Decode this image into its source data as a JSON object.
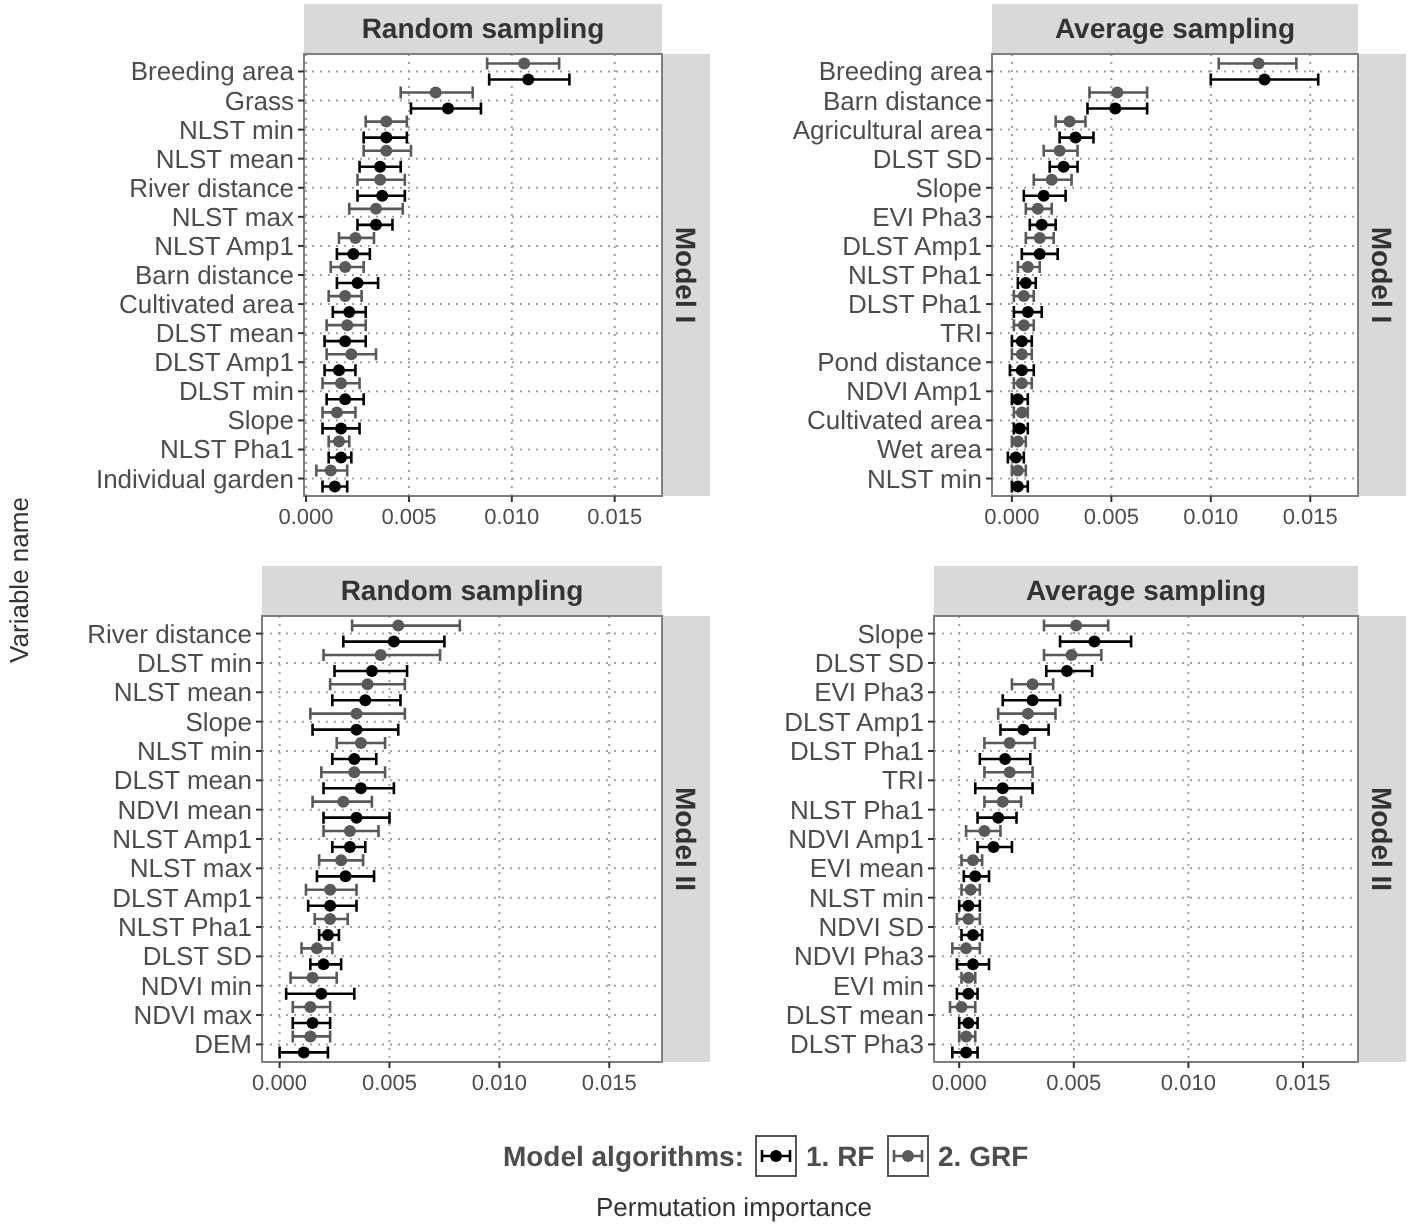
{
  "chart_data": [
    {
      "type": "scatter",
      "orientation": "horizontal",
      "title": "Random sampling",
      "annotations": [
        "Model I"
      ],
      "xlabel": "Permutation importance",
      "ylabel": "Variable name",
      "legend_title": "Model algorithms:",
      "legend": "bottom",
      "grid": true,
      "marker": "circle",
      "xlim": [
        -0.0001,
        0.0173
      ],
      "xticks": [
        {
          "value": 0,
          "label": "0.000"
        },
        {
          "value": 0.005,
          "label": "0.005"
        },
        {
          "value": 0.01,
          "label": "0.010"
        },
        {
          "value": 0.015,
          "label": "0.015"
        }
      ],
      "categories": [
        "Breeding area",
        "Grass",
        "NLST min",
        "NLST mean",
        "River distance",
        "NLST max",
        "NLST Amp1",
        "Barn distance",
        "Cultivated area",
        "DLST mean",
        "DLST Amp1",
        "DLST min",
        "Slope",
        "NLST Pha1",
        "Individual garden"
      ],
      "series": [
        {
          "name": "1. RF",
          "color": "#000000",
          "values": [
            0.0108,
            0.0069,
            0.0039,
            0.0036,
            0.0037,
            0.0034,
            0.0023,
            0.0025,
            0.0021,
            0.0019,
            0.0016,
            0.0019,
            0.0017,
            0.0017,
            0.0014
          ],
          "errors": [
            [
              0.0089,
              0.0128
            ],
            [
              0.0051,
              0.0085
            ],
            [
              0.0028,
              0.0049
            ],
            [
              0.0026,
              0.0046
            ],
            [
              0.0025,
              0.0048
            ],
            [
              0.0025,
              0.0042
            ],
            [
              0.0015,
              0.0031
            ],
            [
              0.0015,
              0.0035
            ],
            [
              0.0013,
              0.0029
            ],
            [
              0.0009,
              0.0029
            ],
            [
              0.0009,
              0.0024
            ],
            [
              0.001,
              0.0028
            ],
            [
              0.0008,
              0.0026
            ],
            [
              0.0011,
              0.0022
            ],
            [
              0.0008,
              0.002
            ]
          ]
        },
        {
          "name": "2. GRF",
          "color": "#595959",
          "values": [
            0.0106,
            0.0063,
            0.0039,
            0.0039,
            0.0036,
            0.0034,
            0.0024,
            0.0019,
            0.0019,
            0.002,
            0.0022,
            0.0017,
            0.0015,
            0.0016,
            0.0012
          ],
          "errors": [
            [
              0.0088,
              0.0123
            ],
            [
              0.0046,
              0.0081
            ],
            [
              0.0029,
              0.0049
            ],
            [
              0.0028,
              0.0051
            ],
            [
              0.0025,
              0.0048
            ],
            [
              0.0021,
              0.0047
            ],
            [
              0.0016,
              0.0033
            ],
            [
              0.0012,
              0.0028
            ],
            [
              0.0011,
              0.0027
            ],
            [
              0.001,
              0.0029
            ],
            [
              0.001,
              0.0034
            ],
            [
              0.0008,
              0.0026
            ],
            [
              0.0008,
              0.0024
            ],
            [
              0.0011,
              0.0021
            ],
            [
              0.0005,
              0.002
            ]
          ]
        }
      ]
    },
    {
      "type": "scatter",
      "orientation": "horizontal",
      "title": "Average sampling",
      "annotations": [
        "Model I"
      ],
      "grid": true,
      "marker": "circle",
      "xlim": [
        -0.001,
        0.0174
      ],
      "xticks": [
        {
          "value": 0,
          "label": "0.000"
        },
        {
          "value": 0.005,
          "label": "0.005"
        },
        {
          "value": 0.01,
          "label": "0.010"
        },
        {
          "value": 0.015,
          "label": "0.015"
        }
      ],
      "categories": [
        "Breeding area",
        "Barn distance",
        "Agricultural area",
        "DLST SD",
        "Slope",
        "EVI Pha3",
        "DLST Amp1",
        "NLST Pha1",
        "DLST Pha1",
        "TRI",
        "Pond distance",
        "NDVI Amp1",
        "Cultivated area",
        "Wet area",
        "NLST min"
      ],
      "series": [
        {
          "color": "#000000",
          "values": [
            0.0127,
            0.0052,
            0.0032,
            0.0026,
            0.0016,
            0.0015,
            0.0014,
            0.0007,
            0.0008,
            0.0005,
            0.0005,
            0.0003,
            0.0004,
            0.0002,
            0.0003
          ],
          "errors": [
            [
              0.01,
              0.0154
            ],
            [
              0.0038,
              0.0068
            ],
            [
              0.0024,
              0.0041
            ],
            [
              0.0019,
              0.0033
            ],
            [
              0.0006,
              0.0027
            ],
            [
              0.0009,
              0.0022
            ],
            [
              0.0005,
              0.0023
            ],
            [
              0.0003,
              0.0012
            ],
            [
              0.0001,
              0.0015
            ],
            [
              0,
              0.001
            ],
            [
              -0.0001,
              0.0011
            ],
            [
              0,
              0.0008
            ],
            [
              0.0001,
              0.0008
            ],
            [
              -0.0002,
              0.0006
            ],
            [
              0,
              0.0008
            ]
          ]
        },
        {
          "color": "#595959",
          "values": [
            0.0124,
            0.0053,
            0.0029,
            0.0024,
            0.002,
            0.0013,
            0.0014,
            0.0008,
            0.0006,
            0.0006,
            0.0005,
            0.0005,
            0.0005,
            0.0003,
            0.0003
          ],
          "errors": [
            [
              0.0104,
              0.0143
            ],
            [
              0.0039,
              0.0068
            ],
            [
              0.0022,
              0.0037
            ],
            [
              0.0016,
              0.0033
            ],
            [
              0.0011,
              0.003
            ],
            [
              0.0007,
              0.002
            ],
            [
              0.0007,
              0.0021
            ],
            [
              0.0003,
              0.0014
            ],
            [
              0.0001,
              0.0011
            ],
            [
              0.0001,
              0.0011
            ],
            [
              0,
              0.001
            ],
            [
              0.0001,
              0.001
            ],
            [
              0.0001,
              0.0008
            ],
            [
              0,
              0.0007
            ],
            [
              0,
              0.0007
            ]
          ]
        }
      ]
    },
    {
      "type": "scatter",
      "orientation": "horizontal",
      "title": "Random sampling",
      "annotations": [
        "Model II"
      ],
      "grid": true,
      "marker": "circle",
      "xlim": [
        -0.0008,
        0.0174
      ],
      "xticks": [
        {
          "value": 0,
          "label": "0.000"
        },
        {
          "value": 0.005,
          "label": "0.005"
        },
        {
          "value": 0.01,
          "label": "0.010"
        },
        {
          "value": 0.015,
          "label": "0.015"
        }
      ],
      "categories": [
        "River distance",
        "DLST min",
        "NLST mean",
        "Slope",
        "NLST min",
        "DLST mean",
        "NDVI mean",
        "NLST Amp1",
        "NLST max",
        "DLST Amp1",
        "NLST Pha1",
        "DLST SD",
        "NDVI min",
        "NDVI max",
        "DEM"
      ],
      "series": [
        {
          "color": "#000000",
          "values": [
            0.0052,
            0.0042,
            0.0039,
            0.0035,
            0.0034,
            0.0037,
            0.0035,
            0.0032,
            0.003,
            0.0023,
            0.0022,
            0.002,
            0.0019,
            0.0015,
            0.0011
          ],
          "errors": [
            [
              0.0029,
              0.0075
            ],
            [
              0.0025,
              0.0058
            ],
            [
              0.0024,
              0.0055
            ],
            [
              0.0015,
              0.0054
            ],
            [
              0.0024,
              0.0044
            ],
            [
              0.002,
              0.0052
            ],
            [
              0.002,
              0.005
            ],
            [
              0.0024,
              0.0039
            ],
            [
              0.0017,
              0.0043
            ],
            [
              0.0013,
              0.0035
            ],
            [
              0.0018,
              0.0027
            ],
            [
              0.0014,
              0.0028
            ],
            [
              0.0003,
              0.0034
            ],
            [
              0.0006,
              0.0023
            ],
            [
              0,
              0.0022
            ]
          ]
        },
        {
          "color": "#595959",
          "values": [
            0.0054,
            0.0046,
            0.004,
            0.0035,
            0.0037,
            0.0034,
            0.0029,
            0.0032,
            0.0028,
            0.0023,
            0.0023,
            0.0017,
            0.0015,
            0.0014,
            0.0014
          ],
          "errors": [
            [
              0.0033,
              0.0082
            ],
            [
              0.002,
              0.0073
            ],
            [
              0.0023,
              0.0057
            ],
            [
              0.0014,
              0.0057
            ],
            [
              0.0026,
              0.0048
            ],
            [
              0.0019,
              0.0048
            ],
            [
              0.0015,
              0.0042
            ],
            [
              0.002,
              0.0045
            ],
            [
              0.0018,
              0.0038
            ],
            [
              0.0012,
              0.0035
            ],
            [
              0.0016,
              0.0031
            ],
            [
              0.001,
              0.0024
            ],
            [
              0.0005,
              0.0026
            ],
            [
              0.0006,
              0.0023
            ],
            [
              0.0006,
              0.0023
            ]
          ]
        }
      ]
    },
    {
      "type": "scatter",
      "orientation": "horizontal",
      "title": "Average sampling",
      "annotations": [
        "Model II"
      ],
      "grid": true,
      "marker": "circle",
      "xlim": [
        -0.0011,
        0.0174
      ],
      "xticks": [
        {
          "value": 0,
          "label": "0.000"
        },
        {
          "value": 0.005,
          "label": "0.005"
        },
        {
          "value": 0.01,
          "label": "0.010"
        },
        {
          "value": 0.015,
          "label": "0.015"
        }
      ],
      "categories": [
        "Slope",
        "DLST SD",
        "EVI Pha3",
        "DLST Amp1",
        "DLST Pha1",
        "TRI",
        "NLST Pha1",
        "NDVI Amp1",
        "EVI mean",
        "NLST min",
        "NDVI SD",
        "NDVI Pha3",
        "EVI min",
        "DLST mean",
        "DLST Pha3"
      ],
      "series": [
        {
          "color": "#000000",
          "values": [
            0.0059,
            0.0047,
            0.0032,
            0.0028,
            0.002,
            0.0019,
            0.0017,
            0.0015,
            0.0007,
            0.0004,
            0.0006,
            0.0006,
            0.0004,
            0.0004,
            0.0003
          ],
          "errors": [
            [
              0.0044,
              0.0075
            ],
            [
              0.0038,
              0.0058
            ],
            [
              0.0019,
              0.0044
            ],
            [
              0.0018,
              0.0039
            ],
            [
              0.0009,
              0.0031
            ],
            [
              0.0007,
              0.0032
            ],
            [
              0.0008,
              0.0025
            ],
            [
              0.0008,
              0.0023
            ],
            [
              0.0002,
              0.0013
            ],
            [
              0,
              0.0009
            ],
            [
              0.0001,
              0.001
            ],
            [
              -0.0001,
              0.0013
            ],
            [
              -0.0001,
              0.0008
            ],
            [
              0,
              0.0008
            ],
            [
              -0.0003,
              0.0008
            ]
          ]
        },
        {
          "color": "#595959",
          "values": [
            0.0051,
            0.0049,
            0.0032,
            0.003,
            0.0022,
            0.0022,
            0.0019,
            0.0011,
            0.0006,
            0.0005,
            0.0004,
            0.0003,
            0.0004,
            0.0001,
            0.0003
          ],
          "errors": [
            [
              0.0037,
              0.0065
            ],
            [
              0.0037,
              0.0062
            ],
            [
              0.0023,
              0.0041
            ],
            [
              0.0017,
              0.0042
            ],
            [
              0.0011,
              0.0033
            ],
            [
              0.0011,
              0.0032
            ],
            [
              0.0011,
              0.0027
            ],
            [
              0.0003,
              0.0018
            ],
            [
              0.0001,
              0.001
            ],
            [
              0.0001,
              0.0009
            ],
            [
              -0.0001,
              0.0009
            ],
            [
              -0.0003,
              0.0009
            ],
            [
              0.0001,
              0.0007
            ],
            [
              -0.0004,
              0.0007
            ],
            [
              0,
              0.0007
            ]
          ]
        }
      ]
    }
  ]
}
